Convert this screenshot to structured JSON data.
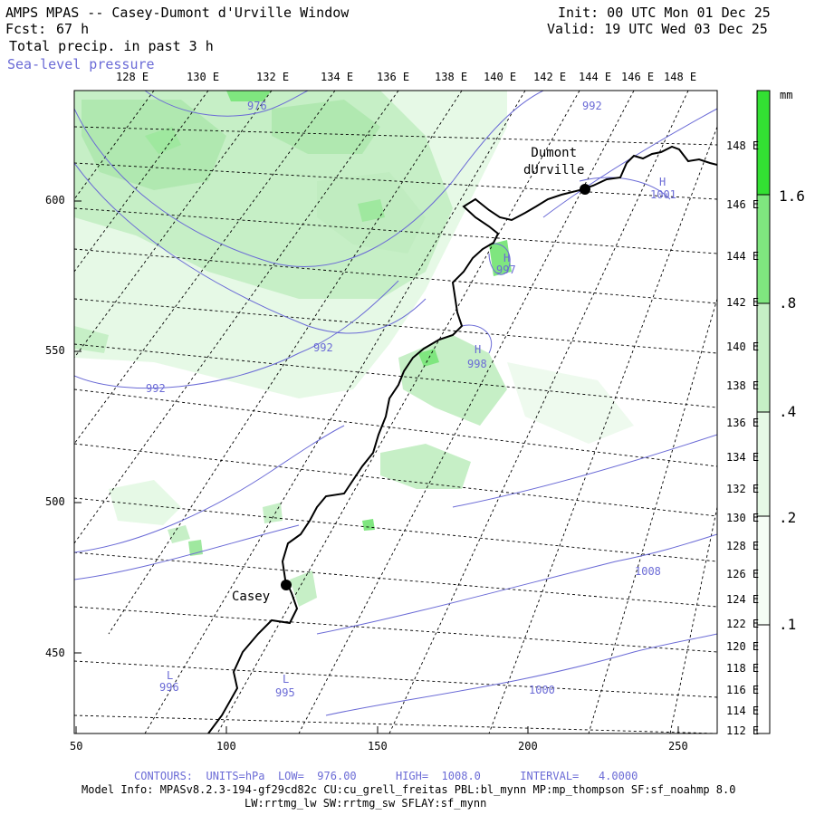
{
  "header": {
    "title": "AMPS MPAS -- Casey-Dumont d'Urville Window",
    "fcst_label": "Fcst:",
    "fcst_value": "67 h",
    "field_name": "Total precip. in past 3 h",
    "contour_field": "Sea-level pressure",
    "init": "Init: 00 UTC Mon 01 Dec 25",
    "valid": "Valid: 19 UTC Wed 03 Dec 25"
  },
  "axes": {
    "top_lon_labels": [
      "128 E",
      "130 E",
      "132 E",
      "134 E",
      "136 E",
      "138 E",
      "140 E",
      "142 E",
      "144 E",
      "146 E",
      "148 E"
    ],
    "right_lon_labels": [
      "148 E",
      "146 E",
      "144 E",
      "142 E",
      "140 E",
      "138 E",
      "136 E",
      "134 E",
      "132 E",
      "130 E",
      "128 E",
      "126 E",
      "124 E",
      "122 E",
      "120 E",
      "118 E",
      "116 E",
      "114 E",
      "112 E"
    ],
    "left_grid_labels": [
      "600",
      "550",
      "500",
      "450"
    ],
    "bottom_grid_labels": [
      "50",
      "100",
      "150",
      "200",
      "250"
    ]
  },
  "colorbar": {
    "unit": "mm",
    "levels": [
      ".1",
      ".2",
      ".4",
      ".8",
      "1.6"
    ],
    "colors": [
      "#ffffff",
      "#e6f9e6",
      "#c6efc6",
      "#7fe67f",
      "#33e033"
    ]
  },
  "stations": [
    {
      "name": "Casey"
    },
    {
      "name": "Dumont\ndUrville"
    }
  ],
  "pressure_centers": [
    {
      "type": "H",
      "value": "997"
    },
    {
      "type": "H",
      "value": "998"
    },
    {
      "type": "H",
      "value": "1001"
    },
    {
      "type": "L",
      "value": "996"
    },
    {
      "type": "L",
      "value": "995"
    }
  ],
  "contour_labels": [
    "976",
    "992",
    "992",
    "992",
    "1008",
    "1000"
  ],
  "footer": {
    "contours": "CONTOURS:  UNITS=hPa  LOW=  976.00      HIGH=  1008.0      INTERVAL=   4.0000",
    "model_info": "Model Info: MPASv8.2.3-194-gf29cd82c CU:cu_grell_freitas PBL:bl_mynn MP:mp_thompson SF:sf_noahmp 8.0",
    "model_info2": "LW:rrtmg_lw SW:rrtmg_sw SFLAY:sf_mynn"
  }
}
